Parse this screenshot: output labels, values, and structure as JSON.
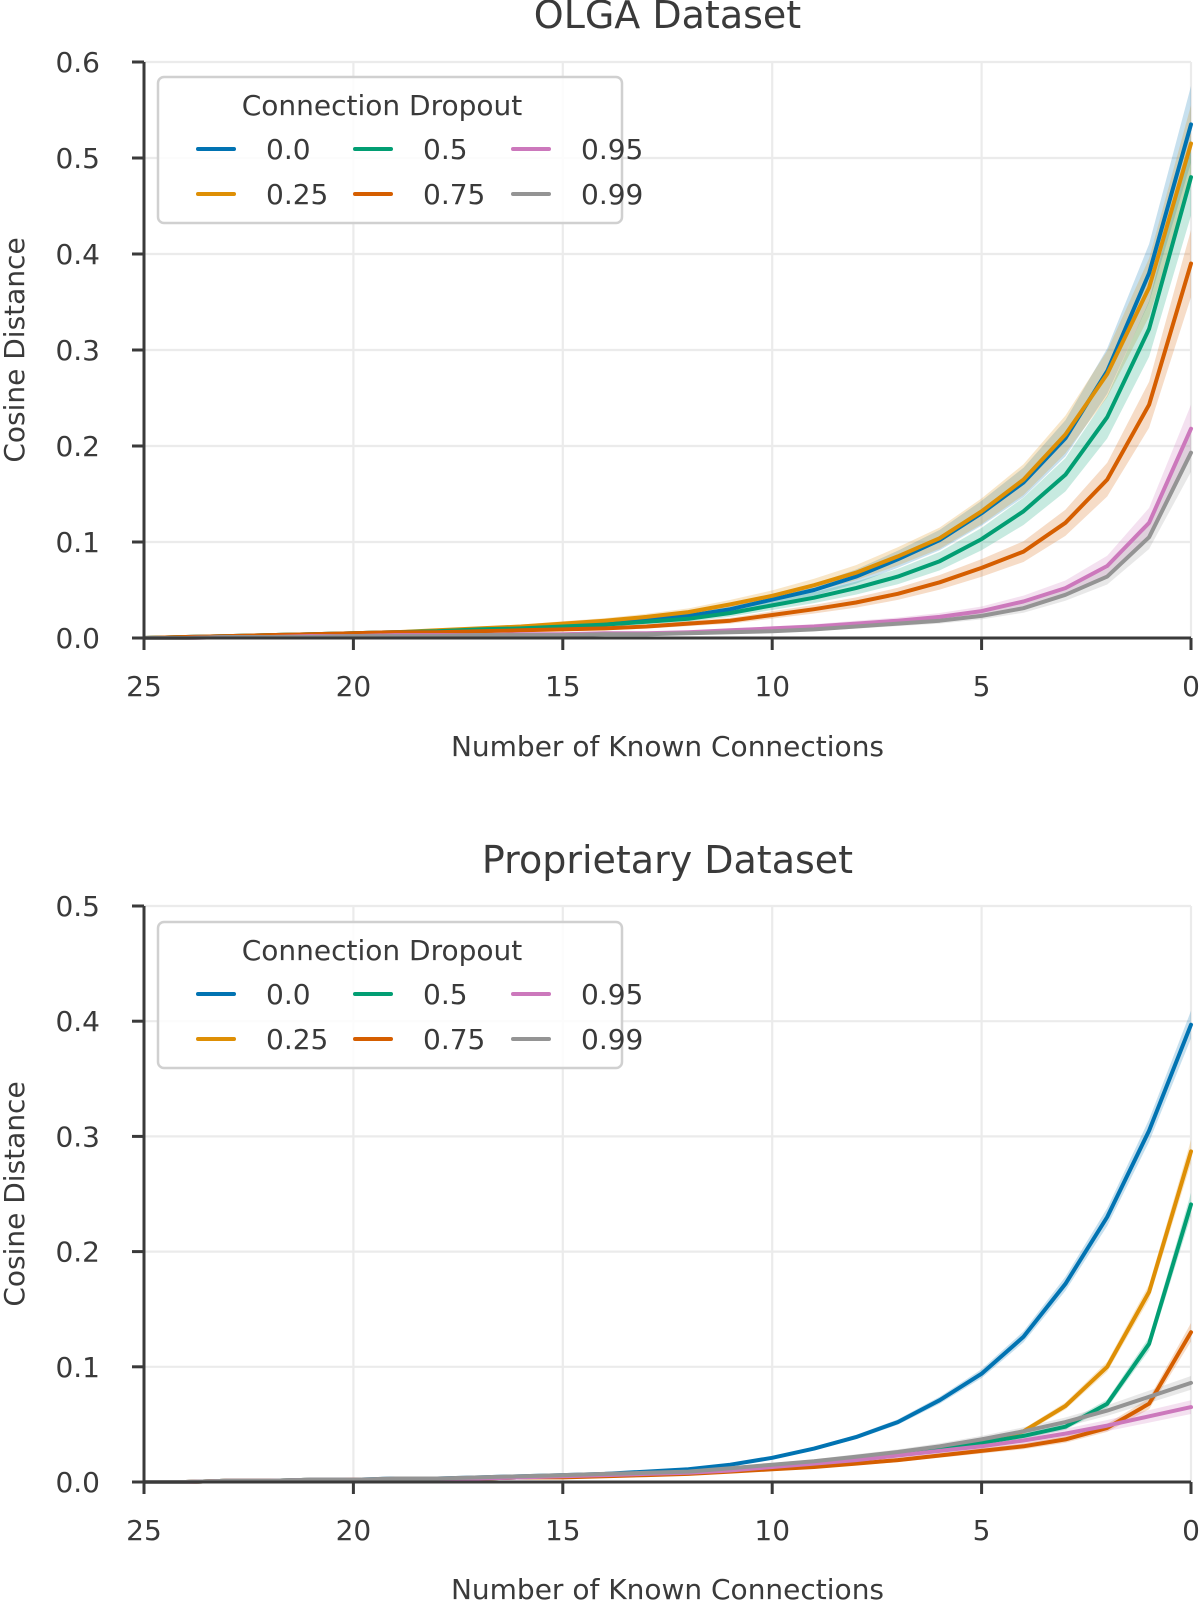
{
  "chart_data": [
    {
      "type": "line",
      "title": "OLGA Dataset",
      "xlabel": "Number of Known Connections",
      "ylabel": "Cosine Distance",
      "xlim": [
        25,
        0
      ],
      "ylim": [
        0,
        0.6
      ],
      "xticks": [
        25,
        20,
        15,
        10,
        5,
        0
      ],
      "yticks": [
        "0.0",
        "0.1",
        "0.2",
        "0.3",
        "0.4",
        "0.5",
        "0.6"
      ],
      "grid": true,
      "legend": {
        "title": "Connection Dropout",
        "placement": "top-left",
        "columns": 3
      },
      "x": [
        25,
        24,
        23,
        22,
        21,
        20,
        19,
        18,
        17,
        16,
        15,
        14,
        13,
        12,
        11,
        10,
        9,
        8,
        7,
        6,
        5,
        4,
        3,
        2,
        1,
        0
      ],
      "series": [
        {
          "name": "0.0",
          "color": "#0173b2",
          "band": 0.04,
          "values": [
            0.0,
            0.001,
            0.002,
            0.003,
            0.004,
            0.005,
            0.006,
            0.007,
            0.009,
            0.011,
            0.013,
            0.016,
            0.019,
            0.023,
            0.03,
            0.04,
            0.05,
            0.064,
            0.082,
            0.102,
            0.13,
            0.162,
            0.208,
            0.278,
            0.38,
            0.535
          ]
        },
        {
          "name": "0.25",
          "color": "#de8f05",
          "band": 0.04,
          "values": [
            0.0,
            0.001,
            0.002,
            0.003,
            0.004,
            0.005,
            0.006,
            0.008,
            0.01,
            0.012,
            0.015,
            0.018,
            0.022,
            0.027,
            0.035,
            0.044,
            0.055,
            0.068,
            0.085,
            0.104,
            0.132,
            0.165,
            0.212,
            0.275,
            0.365,
            0.515
          ]
        },
        {
          "name": "0.5",
          "color": "#029e73",
          "band": 0.04,
          "values": [
            0.0,
            0.001,
            0.002,
            0.003,
            0.004,
            0.005,
            0.006,
            0.007,
            0.009,
            0.01,
            0.012,
            0.014,
            0.017,
            0.02,
            0.026,
            0.034,
            0.042,
            0.052,
            0.064,
            0.08,
            0.103,
            0.132,
            0.17,
            0.23,
            0.322,
            0.48
          ]
        },
        {
          "name": "0.75",
          "color": "#d55e00",
          "band": 0.035,
          "values": [
            0.0,
            0.001,
            0.002,
            0.003,
            0.004,
            0.005,
            0.006,
            0.006,
            0.007,
            0.008,
            0.009,
            0.01,
            0.012,
            0.015,
            0.018,
            0.024,
            0.03,
            0.037,
            0.046,
            0.058,
            0.073,
            0.09,
            0.12,
            0.165,
            0.243,
            0.39
          ]
        },
        {
          "name": "0.95",
          "color": "#cc78bc",
          "band": 0.025,
          "values": [
            0.0,
            0.0,
            0.001,
            0.001,
            0.002,
            0.002,
            0.003,
            0.003,
            0.003,
            0.004,
            0.004,
            0.005,
            0.005,
            0.006,
            0.008,
            0.01,
            0.012,
            0.015,
            0.018,
            0.022,
            0.028,
            0.038,
            0.052,
            0.075,
            0.12,
            0.218
          ]
        },
        {
          "name": "0.99",
          "color": "#949494",
          "band": 0.02,
          "values": [
            0.0,
            0.0,
            0.001,
            0.001,
            0.001,
            0.002,
            0.002,
            0.002,
            0.003,
            0.003,
            0.003,
            0.004,
            0.004,
            0.005,
            0.006,
            0.007,
            0.009,
            0.012,
            0.015,
            0.018,
            0.023,
            0.031,
            0.045,
            0.064,
            0.105,
            0.193
          ]
        }
      ]
    },
    {
      "type": "line",
      "title": "Proprietary Dataset",
      "xlabel": "Number of Known Connections",
      "ylabel": "Cosine Distance",
      "xlim": [
        25,
        0
      ],
      "ylim": [
        0,
        0.5
      ],
      "xticks": [
        25,
        20,
        15,
        10,
        5,
        0
      ],
      "yticks": [
        "0.0",
        "0.1",
        "0.2",
        "0.3",
        "0.4",
        "0.5"
      ],
      "grid": true,
      "legend": {
        "title": "Connection Dropout",
        "placement": "top-left",
        "columns": 3
      },
      "x": [
        25,
        24,
        23,
        22,
        21,
        20,
        19,
        18,
        17,
        16,
        15,
        14,
        13,
        12,
        11,
        10,
        9,
        8,
        7,
        6,
        5,
        4,
        3,
        2,
        1,
        0
      ],
      "series": [
        {
          "name": "0.0",
          "color": "#0173b2",
          "band": 0.012,
          "values": [
            0.0,
            0.0,
            0.001,
            0.001,
            0.002,
            0.002,
            0.003,
            0.003,
            0.004,
            0.005,
            0.006,
            0.007,
            0.009,
            0.011,
            0.015,
            0.021,
            0.029,
            0.039,
            0.052,
            0.071,
            0.094,
            0.126,
            0.172,
            0.23,
            0.305,
            0.397
          ]
        },
        {
          "name": "0.25",
          "color": "#de8f05",
          "band": 0.01,
          "values": [
            0.0,
            0.0,
            0.001,
            0.001,
            0.002,
            0.002,
            0.002,
            0.003,
            0.003,
            0.004,
            0.005,
            0.006,
            0.007,
            0.008,
            0.01,
            0.013,
            0.016,
            0.02,
            0.024,
            0.029,
            0.034,
            0.044,
            0.066,
            0.1,
            0.165,
            0.287
          ]
        },
        {
          "name": "0.5",
          "color": "#029e73",
          "band": 0.01,
          "values": [
            0.0,
            0.0,
            0.001,
            0.001,
            0.002,
            0.002,
            0.002,
            0.003,
            0.003,
            0.004,
            0.005,
            0.006,
            0.007,
            0.008,
            0.01,
            0.013,
            0.016,
            0.02,
            0.024,
            0.029,
            0.034,
            0.04,
            0.048,
            0.068,
            0.12,
            0.241
          ]
        },
        {
          "name": "0.75",
          "color": "#d55e00",
          "band": 0.008,
          "values": [
            0.0,
            0.0,
            0.001,
            0.001,
            0.001,
            0.002,
            0.002,
            0.002,
            0.003,
            0.004,
            0.004,
            0.005,
            0.006,
            0.007,
            0.009,
            0.011,
            0.013,
            0.016,
            0.019,
            0.023,
            0.027,
            0.031,
            0.037,
            0.047,
            0.068,
            0.13
          ]
        },
        {
          "name": "0.95",
          "color": "#cc78bc",
          "band": 0.006,
          "values": [
            0.0,
            0.0,
            0.001,
            0.001,
            0.002,
            0.002,
            0.002,
            0.003,
            0.003,
            0.004,
            0.005,
            0.006,
            0.007,
            0.008,
            0.01,
            0.013,
            0.016,
            0.019,
            0.023,
            0.027,
            0.031,
            0.036,
            0.042,
            0.049,
            0.057,
            0.065
          ]
        },
        {
          "name": "0.99",
          "color": "#949494",
          "band": 0.006,
          "values": [
            0.0,
            0.0,
            0.001,
            0.001,
            0.002,
            0.002,
            0.003,
            0.003,
            0.004,
            0.005,
            0.006,
            0.007,
            0.008,
            0.009,
            0.012,
            0.015,
            0.018,
            0.022,
            0.026,
            0.031,
            0.037,
            0.044,
            0.052,
            0.062,
            0.074,
            0.086
          ]
        }
      ]
    }
  ]
}
